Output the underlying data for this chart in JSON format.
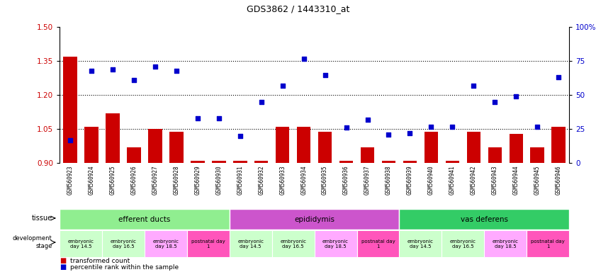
{
  "title": "GDS3862 / 1443310_at",
  "samples": [
    "GSM560923",
    "GSM560924",
    "GSM560925",
    "GSM560926",
    "GSM560927",
    "GSM560928",
    "GSM560929",
    "GSM560930",
    "GSM560931",
    "GSM560932",
    "GSM560933",
    "GSM560934",
    "GSM560935",
    "GSM560936",
    "GSM560937",
    "GSM560938",
    "GSM560939",
    "GSM560940",
    "GSM560941",
    "GSM560942",
    "GSM560943",
    "GSM560944",
    "GSM560945",
    "GSM560946"
  ],
  "transformed_count": [
    1.37,
    1.06,
    1.12,
    0.97,
    1.05,
    1.04,
    0.91,
    0.91,
    0.91,
    0.91,
    1.06,
    1.06,
    1.04,
    0.91,
    0.97,
    0.91,
    0.91,
    1.04,
    0.91,
    1.04,
    0.97,
    1.03,
    0.97,
    1.06
  ],
  "percentile": [
    17,
    68,
    69,
    61,
    71,
    68,
    33,
    33,
    20,
    45,
    57,
    77,
    65,
    26,
    32,
    21,
    22,
    27,
    27,
    57,
    45,
    49,
    27,
    63
  ],
  "ylim_left": [
    0.9,
    1.5
  ],
  "ylim_right": [
    0,
    100
  ],
  "yticks_left": [
    0.9,
    1.05,
    1.2,
    1.35,
    1.5
  ],
  "yticks_right": [
    0,
    25,
    50,
    75,
    100
  ],
  "bar_color": "#cc0000",
  "scatter_color": "#0000cc",
  "tissue_groups": [
    {
      "label": "efferent ducts",
      "start": 0,
      "end": 7,
      "color": "#90ee90"
    },
    {
      "label": "epididymis",
      "start": 8,
      "end": 15,
      "color": "#cc55cc"
    },
    {
      "label": "vas deferens",
      "start": 16,
      "end": 23,
      "color": "#33cc66"
    }
  ],
  "dev_stage_groups": [
    {
      "label": "embryonic\nday 14.5",
      "start": 0,
      "end": 1,
      "color": "#ccffcc"
    },
    {
      "label": "embryonic\nday 16.5",
      "start": 2,
      "end": 3,
      "color": "#ccffcc"
    },
    {
      "label": "embryonic\nday 18.5",
      "start": 4,
      "end": 5,
      "color": "#ffaaff"
    },
    {
      "label": "postnatal day\n1",
      "start": 6,
      "end": 7,
      "color": "#ff55bb"
    },
    {
      "label": "embryonic\nday 14.5",
      "start": 8,
      "end": 9,
      "color": "#ccffcc"
    },
    {
      "label": "embryonic\nday 16.5",
      "start": 10,
      "end": 11,
      "color": "#ccffcc"
    },
    {
      "label": "embryonic\nday 18.5",
      "start": 12,
      "end": 13,
      "color": "#ffaaff"
    },
    {
      "label": "postnatal day\n1",
      "start": 14,
      "end": 15,
      "color": "#ff55bb"
    },
    {
      "label": "embryonic\nday 14.5",
      "start": 16,
      "end": 17,
      "color": "#ccffcc"
    },
    {
      "label": "embryonic\nday 16.5",
      "start": 18,
      "end": 19,
      "color": "#ccffcc"
    },
    {
      "label": "embryonic\nday 18.5",
      "start": 20,
      "end": 21,
      "color": "#ffaaff"
    },
    {
      "label": "postnatal day\n1",
      "start": 22,
      "end": 23,
      "color": "#ff55bb"
    }
  ],
  "hlines": [
    1.05,
    1.2,
    1.35
  ],
  "background_color": "#ffffff",
  "xlabels_bg": "#c8c8c8"
}
